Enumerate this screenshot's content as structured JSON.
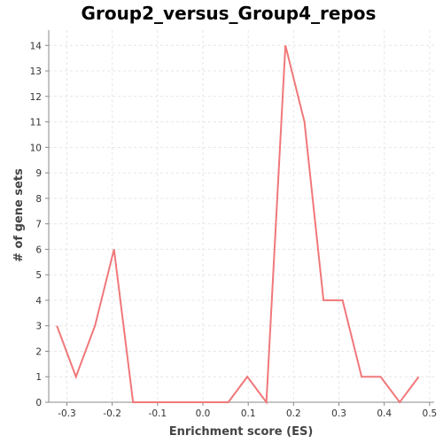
{
  "chart_data": {
    "type": "line",
    "title": "Group2_versus_Group4_repos",
    "xlabel": "Enrichment score (ES)",
    "ylabel": "# of gene sets",
    "xlim": [
      -0.34,
      0.51
    ],
    "ylim": [
      0,
      14.6
    ],
    "xticks": [
      -0.3,
      -0.2,
      -0.1,
      0.0,
      0.1,
      0.2,
      0.3,
      0.4,
      0.5
    ],
    "xtick_labels": [
      "-0.3",
      "-0.2",
      "-0.1",
      "0.0",
      "0.1",
      "0.2",
      "0.3",
      "0.4",
      "0.5"
    ],
    "yticks": [
      0,
      1,
      2,
      3,
      4,
      5,
      6,
      7,
      8,
      9,
      10,
      11,
      12,
      13,
      14
    ],
    "ytick_labels": [
      "0",
      "1",
      "2",
      "3",
      "4",
      "5",
      "6",
      "7",
      "8",
      "9",
      "10",
      "11",
      "12",
      "13",
      "14"
    ],
    "grid": true,
    "series": [
      {
        "color": "#f0787a",
        "x": [
          -0.322,
          -0.28,
          -0.238,
          -0.196,
          -0.154,
          -0.112,
          -0.07,
          -0.028,
          0.014,
          0.056,
          0.098,
          0.14,
          0.182,
          0.224,
          0.266,
          0.308,
          0.35,
          0.392,
          0.434,
          0.476
        ],
        "y": [
          3,
          1,
          3,
          6,
          0,
          0,
          0,
          0,
          0,
          0,
          1,
          0,
          14,
          11,
          4,
          4,
          1,
          1,
          0,
          1
        ]
      }
    ]
  }
}
